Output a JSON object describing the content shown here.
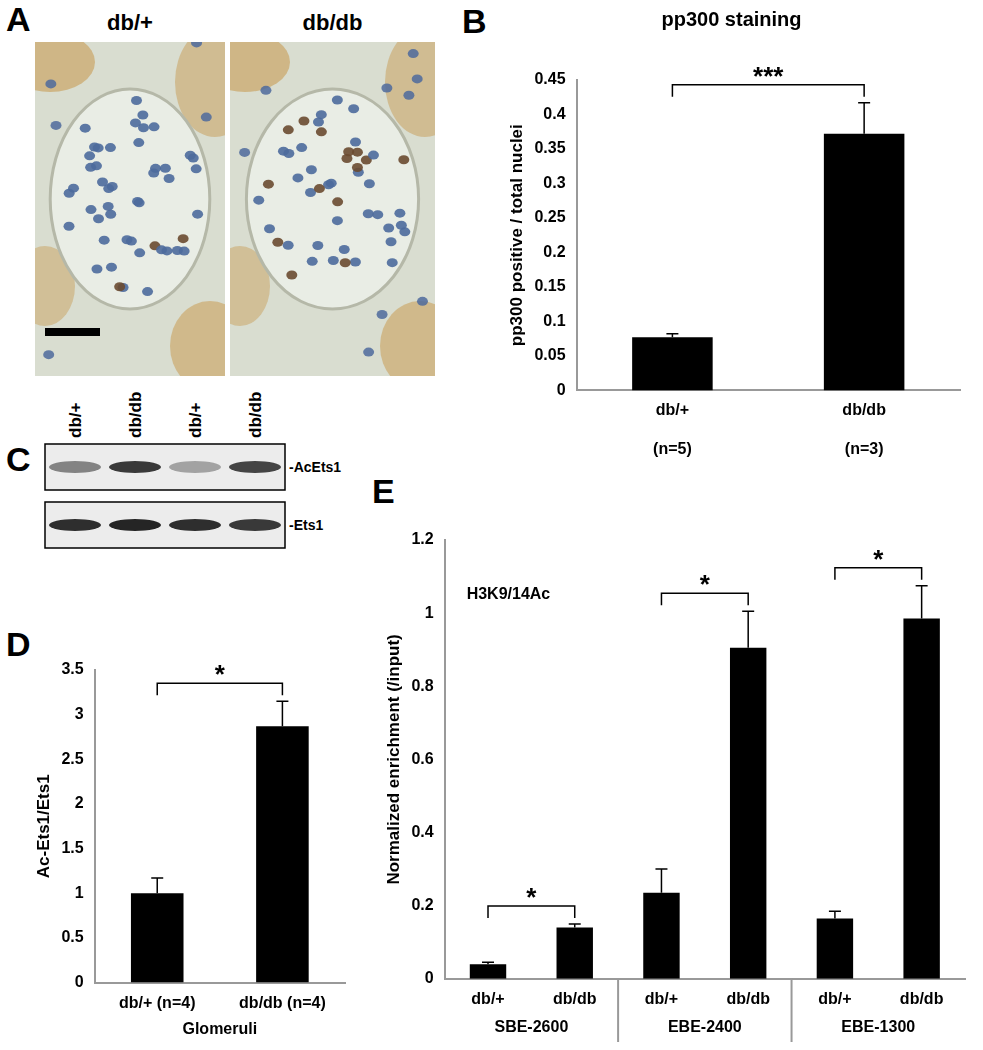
{
  "figure": {
    "A": {
      "label": "A",
      "image_titles": [
        "db/+",
        "db/db"
      ]
    },
    "C": {
      "label": "C",
      "lane_labels": [
        "db/+",
        "db/db",
        "db/+",
        "db/db"
      ],
      "band_labels": [
        "-AcEts1",
        "-Ets1"
      ]
    }
  },
  "chart_data": [
    {
      "panel": "B",
      "type": "bar",
      "title": "pp300 staining",
      "y_label": "pp300 positive / total nuclei",
      "categories": [
        "db/+",
        "db/db"
      ],
      "sample_sizes": [
        "(n=5)",
        "(n=3)"
      ],
      "values": [
        0.077,
        0.372
      ],
      "errors": [
        0.005,
        0.045
      ],
      "color": "#000000",
      "ylim": [
        0,
        0.45
      ],
      "yticks": [
        0,
        0.05,
        0.1,
        0.15,
        0.2,
        0.25,
        0.3,
        0.35,
        0.4,
        0.45
      ],
      "grid": false,
      "significance": "***"
    },
    {
      "panel": "D",
      "type": "bar",
      "y_label": "Ac-Ets1/Ets1",
      "x_label": "Glomeruli",
      "categories": [
        "db/+ (n=4)",
        "db/db (n=4)"
      ],
      "values": [
        1.0,
        2.87
      ],
      "errors": [
        0.17,
        0.28
      ],
      "color": "#000000",
      "ylim": [
        0,
        3.5
      ],
      "yticks": [
        0,
        0.5,
        1,
        1.5,
        2,
        2.5,
        3,
        3.5
      ],
      "grid": false,
      "significance": "*"
    },
    {
      "panel": "E",
      "type": "bar",
      "y_label": "Normalized enrichment (/input)",
      "annotation": "H3K9/14Ac",
      "categories": [
        "db/+",
        "db/db",
        "db/+",
        "db/db",
        "db/+",
        "db/db"
      ],
      "groups": [
        "SBE-2600",
        "SBE-2600",
        "EBE-2400",
        "EBE-2400",
        "EBE-1300",
        "EBE-1300"
      ],
      "values": [
        0.04,
        0.14,
        0.235,
        0.905,
        0.165,
        0.985
      ],
      "errors": [
        0.005,
        0.01,
        0.065,
        0.1,
        0.02,
        0.09
      ],
      "color": "#000000",
      "ylim": [
        0,
        1.2
      ],
      "yticks": [
        0,
        0.2,
        0.4,
        0.6,
        0.8,
        1,
        1.2
      ],
      "grid": false,
      "significance": [
        "*",
        "*",
        "*"
      ]
    }
  ]
}
